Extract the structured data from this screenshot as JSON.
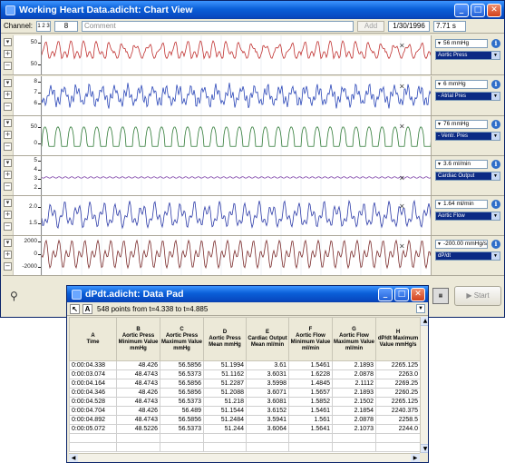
{
  "main_window": {
    "title": "Working Heart Data.adicht: Chart View",
    "toolbar": {
      "channel_label": "Channel:",
      "channel_spinner": "1 2 3",
      "comment_number": "8",
      "comment_placeholder": "Comment",
      "add_label": "Add",
      "date": "1/30/1996",
      "time": "7.71 s"
    }
  },
  "channels": [
    {
      "ticks": [
        "50",
        "50"
      ],
      "value": "56 mmHg",
      "name": "Aortic Press",
      "color": "#c0302f"
    },
    {
      "ticks": [
        "8",
        "7",
        "6"
      ],
      "value": "6 mmHg",
      "name": "- Atrial Pres",
      "color": "#2b47b8"
    },
    {
      "ticks": [
        "50",
        "0"
      ],
      "value": "76 mmHg",
      "name": "- Ventr. Pres",
      "color": "#2e7a35"
    },
    {
      "ticks": [
        "5",
        "4",
        "3",
        "2"
      ],
      "value": "3.6 ml/min",
      "name": "Cardiac Output",
      "color": "#7b3fa6"
    },
    {
      "ticks": [
        "2.0",
        "1.5"
      ],
      "value": "1.64 ml/min",
      "name": "Aortic Flow",
      "color": "#2b3aa8"
    },
    {
      "ticks": [
        "2000",
        "0",
        "-2000"
      ],
      "value": "-200.00 mmHg/s",
      "name": "dP/dt",
      "color": "#7a2a2a"
    }
  ],
  "bottom_bar": {
    "start_label": "Start"
  },
  "datapad": {
    "title": "dPdt.adicht: Data Pad",
    "range_text": "548 points from t=4.338 to t=4.885",
    "columns": [
      {
        "letter": "A",
        "label": "Time"
      },
      {
        "letter": "B",
        "label": "Aortic Press Minimum Value mmHg"
      },
      {
        "letter": "C",
        "label": "Aortic Press Maximum Value mmHg"
      },
      {
        "letter": "D",
        "label": "Aortic Press Mean mmHg"
      },
      {
        "letter": "E",
        "label": "Cardiac Output Mean ml/min"
      },
      {
        "letter": "F",
        "label": "Aortic Flow Minimum Value ml/min"
      },
      {
        "letter": "G",
        "label": "Aortic Flow Maximum Value ml/min"
      },
      {
        "letter": "H",
        "label": "dP/dt Maximum Value mmHg/s"
      }
    ],
    "rows": [
      [
        "0:00:04.338",
        "48.426",
        "56.5856",
        "51.1994",
        "3.61",
        "1.5461",
        "2.1893",
        "2265.125"
      ],
      [
        "0:00:03.074",
        "48.4743",
        "56.5373",
        "51.1162",
        "3.6031",
        "1.6228",
        "2.0878",
        "2263.0"
      ],
      [
        "0:00:04.164",
        "48.4743",
        "56.5856",
        "51.2287",
        "3.5998",
        "1.4845",
        "2.1112",
        "2269.25"
      ],
      [
        "0:00:04.346",
        "48.426",
        "56.5856",
        "51.2088",
        "3.6071",
        "1.5657",
        "2.1893",
        "2260.25"
      ],
      [
        "0:00:04.528",
        "48.4743",
        "56.5373",
        "51.218",
        "3.6081",
        "1.5852",
        "2.1502",
        "2265.125"
      ],
      [
        "0:00:04.704",
        "48.426",
        "56.489",
        "51.1544",
        "3.6152",
        "1.5461",
        "2.1854",
        "2240.375"
      ],
      [
        "0:00:04.892",
        "48.4743",
        "56.5856",
        "51.2484",
        "3.5941",
        "1.561",
        "2.0878",
        "2258.5"
      ],
      [
        "0:00:05.072",
        "48.5226",
        "56.5373",
        "51.244",
        "3.6064",
        "1.5641",
        "2.1073",
        "2244.0"
      ],
      [
        "",
        "",
        "",
        "",
        "",
        "",
        "",
        ""
      ],
      [
        "",
        "",
        "",
        "",
        "",
        "",
        "",
        ""
      ]
    ]
  }
}
